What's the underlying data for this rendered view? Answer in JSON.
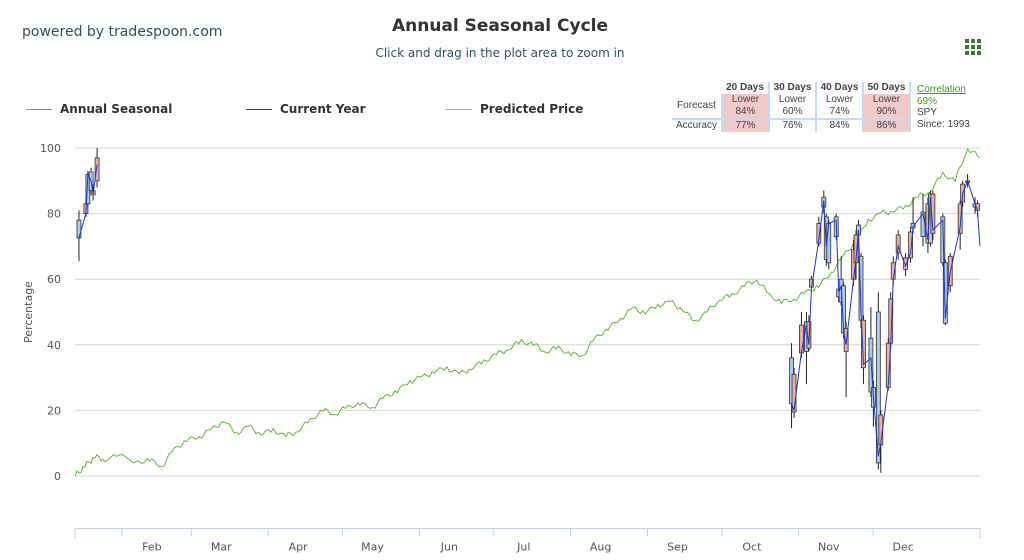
{
  "header": {
    "powered": "powered by tradespoon.com",
    "menu_icon": "grid-menu-icon"
  },
  "forecast": {
    "headers": [
      "20 Days",
      "30 Days",
      "40 Days",
      "50 Days"
    ],
    "forecast_label": "Forecast",
    "accuracy_label": "Accuracy",
    "forecast": [
      {
        "dir": "Lower",
        "pct": "84%",
        "hl": true
      },
      {
        "dir": "Lower",
        "pct": "60%",
        "hl": false
      },
      {
        "dir": "Lower",
        "pct": "74%",
        "hl": false
      },
      {
        "dir": "Lower",
        "pct": "90%",
        "hl": true
      }
    ],
    "accuracy": [
      {
        "pct": "77%",
        "hl": true
      },
      {
        "pct": "76%",
        "hl": false
      },
      {
        "pct": "84%",
        "hl": false
      },
      {
        "pct": "86%",
        "hl": true
      }
    ],
    "correlation_label": "Correlation",
    "correlation": "69%",
    "symbol": "SPY",
    "since": "Since: 1993"
  },
  "colors": {
    "seasonal": "#5cb83c",
    "current": "#2233cc",
    "predicted": "#f08a5d",
    "up": "#a9c9ee",
    "down": "#e8aea6"
  },
  "chart_data": {
    "type": "line",
    "title": "Annual Seasonal Cycle",
    "subtitle": "Click and drag in the plot area to zoom in",
    "ylabel": "Percentage",
    "xlabel": "",
    "ylim": [
      -16,
      100
    ],
    "xlim": [
      0,
      365
    ],
    "yticks": [
      0,
      20,
      40,
      60,
      80,
      100
    ],
    "xticks": [
      {
        "day": 31,
        "label": "Feb"
      },
      {
        "day": 59,
        "label": "Mar"
      },
      {
        "day": 90,
        "label": "Apr"
      },
      {
        "day": 120,
        "label": "May"
      },
      {
        "day": 151,
        "label": "Jun"
      },
      {
        "day": 181,
        "label": "Jul"
      },
      {
        "day": 212,
        "label": "Aug"
      },
      {
        "day": 243,
        "label": "Sep"
      },
      {
        "day": 273,
        "label": "Oct"
      },
      {
        "day": 304,
        "label": "Nov"
      },
      {
        "day": 334,
        "label": "Dec"
      }
    ],
    "legend": [
      "Annual Seasonal",
      "Current Year",
      "Predicted Price"
    ],
    "legend_position": "top-left",
    "seasonal": [
      [
        0,
        0
      ],
      [
        4,
        3
      ],
      [
        8,
        6
      ],
      [
        12,
        5
      ],
      [
        18,
        6
      ],
      [
        25,
        4
      ],
      [
        30,
        5
      ],
      [
        35,
        3
      ],
      [
        40,
        8
      ],
      [
        45,
        11
      ],
      [
        50,
        12
      ],
      [
        55,
        14
      ],
      [
        60,
        17
      ],
      [
        65,
        13
      ],
      [
        70,
        15
      ],
      [
        75,
        13
      ],
      [
        80,
        14
      ],
      [
        85,
        12
      ],
      [
        90,
        14
      ],
      [
        95,
        17
      ],
      [
        100,
        20
      ],
      [
        105,
        19
      ],
      [
        110,
        21
      ],
      [
        115,
        22
      ],
      [
        120,
        21
      ],
      [
        125,
        24
      ],
      [
        130,
        26
      ],
      [
        135,
        29
      ],
      [
        140,
        30
      ],
      [
        145,
        32
      ],
      [
        150,
        33
      ],
      [
        155,
        31
      ],
      [
        160,
        33
      ],
      [
        165,
        35
      ],
      [
        170,
        37
      ],
      [
        175,
        39
      ],
      [
        180,
        41
      ],
      [
        185,
        40
      ],
      [
        190,
        38
      ],
      [
        195,
        39
      ],
      [
        200,
        37
      ],
      [
        205,
        37
      ],
      [
        210,
        42
      ],
      [
        215,
        45
      ],
      [
        220,
        48
      ],
      [
        225,
        51
      ],
      [
        230,
        50
      ],
      [
        235,
        52
      ],
      [
        240,
        53
      ],
      [
        245,
        51
      ],
      [
        250,
        47
      ],
      [
        255,
        50
      ],
      [
        260,
        54
      ],
      [
        265,
        55
      ],
      [
        270,
        58
      ],
      [
        275,
        60
      ],
      [
        280,
        55
      ],
      [
        285,
        53
      ],
      [
        290,
        54
      ],
      [
        295,
        56
      ],
      [
        300,
        58
      ],
      [
        305,
        62
      ],
      [
        310,
        67
      ],
      [
        315,
        72
      ],
      [
        320,
        78
      ],
      [
        325,
        80
      ],
      [
        330,
        81
      ],
      [
        335,
        82
      ],
      [
        340,
        85
      ],
      [
        345,
        87
      ],
      [
        350,
        92
      ],
      [
        355,
        90
      ],
      [
        360,
        100
      ],
      [
        365,
        97
      ]
    ],
    "candles": [
      [
        1.6,
        72.6,
        81,
        65.5,
        78
      ],
      [
        4.4,
        83,
        84,
        79,
        80
      ],
      [
        5.2,
        83,
        93,
        82,
        92
      ],
      [
        6.5,
        87,
        94,
        86,
        92.7
      ],
      [
        7.3,
        87,
        89,
        84,
        85.7
      ],
      [
        8.9,
        97,
        100,
        88,
        90
      ],
      [
        289,
        22,
        40.5,
        14.6,
        36
      ],
      [
        290,
        31,
        33,
        17.7,
        19.5
      ],
      [
        293,
        46,
        50,
        36,
        37.5
      ],
      [
        295,
        38,
        50,
        28,
        47
      ],
      [
        296,
        47,
        49,
        38,
        39
      ],
      [
        297,
        60,
        61,
        57,
        57.6
      ],
      [
        300,
        77,
        79,
        70,
        71
      ],
      [
        302,
        82,
        87,
        80,
        85
      ],
      [
        303,
        66,
        80,
        64,
        79
      ],
      [
        304,
        65,
        78,
        63,
        77
      ],
      [
        307,
        73,
        80,
        72,
        79
      ],
      [
        308,
        54.6,
        58,
        53,
        57
      ],
      [
        309,
        53,
        67,
        52,
        60
      ],
      [
        310,
        43.6,
        59,
        42,
        58
      ],
      [
        311,
        45,
        47,
        24,
        38
      ],
      [
        314,
        69,
        72,
        58,
        60
      ],
      [
        315,
        73.5,
        75,
        60,
        65
      ],
      [
        316,
        73.5,
        78,
        72,
        76.5
      ],
      [
        317,
        47.5,
        68,
        45,
        67
      ],
      [
        318,
        47.5,
        49,
        28,
        33
      ],
      [
        321,
        25.6,
        51.5,
        24,
        42
      ],
      [
        322,
        21,
        29,
        15,
        27
      ],
      [
        324,
        4,
        56,
        2,
        50
      ],
      [
        325,
        18.6,
        20,
        1,
        9.5
      ],
      [
        328,
        40.5,
        42,
        26,
        27
      ],
      [
        329,
        54,
        56,
        39,
        40.5
      ],
      [
        330,
        65,
        67,
        58,
        60
      ],
      [
        332,
        73.5,
        75,
        66,
        68
      ],
      [
        335,
        66.5,
        68,
        61,
        63
      ],
      [
        337,
        74.4,
        76,
        65,
        66.5
      ],
      [
        338,
        75.6,
        85,
        74,
        77
      ],
      [
        342,
        73,
        86,
        70,
        80.5
      ],
      [
        344,
        83,
        85,
        68,
        71
      ],
      [
        345,
        71,
        87,
        70,
        86
      ],
      [
        346,
        86,
        87,
        72,
        74
      ],
      [
        350,
        65,
        80,
        64,
        79
      ],
      [
        351,
        46.6,
        66,
        46,
        65
      ],
      [
        353,
        67,
        68,
        56,
        58
      ],
      [
        357,
        83,
        84,
        69,
        74
      ],
      [
        358,
        89,
        90,
        82,
        83.5
      ],
      [
        360,
        89.5,
        92,
        88,
        90
      ],
      [
        363,
        82,
        85,
        80,
        83
      ],
      [
        364,
        83,
        84,
        79,
        81
      ]
    ],
    "current_line": [
      [
        1.6,
        72.6
      ],
      [
        4.4,
        80
      ],
      [
        5.2,
        92
      ],
      [
        6.5,
        90
      ],
      [
        7.3,
        86
      ],
      [
        8.9,
        95
      ],
      null,
      [
        289,
        22
      ],
      [
        290,
        20
      ],
      [
        293,
        38
      ],
      [
        295,
        46
      ],
      [
        296,
        40
      ],
      [
        297,
        57
      ],
      [
        300,
        72
      ],
      [
        302,
        84
      ],
      [
        303,
        70
      ],
      [
        304,
        77
      ],
      [
        307,
        78
      ],
      [
        308,
        56
      ],
      [
        309,
        58
      ],
      [
        310,
        44
      ],
      [
        311,
        40
      ],
      [
        314,
        60
      ],
      [
        315,
        66
      ],
      [
        316,
        75
      ],
      [
        317,
        50
      ],
      [
        318,
        34
      ],
      [
        321,
        36
      ],
      [
        322,
        24
      ],
      [
        324,
        6
      ],
      [
        325,
        10
      ],
      [
        328,
        28
      ],
      [
        329,
        40
      ],
      [
        330,
        60
      ],
      [
        332,
        70
      ],
      [
        335,
        64
      ],
      [
        337,
        68
      ],
      [
        338,
        76
      ],
      [
        342,
        80
      ],
      [
        344,
        72
      ],
      [
        345,
        85
      ],
      [
        346,
        75
      ],
      [
        350,
        78
      ],
      [
        351,
        48
      ],
      [
        353,
        62
      ],
      [
        357,
        76
      ],
      [
        358,
        86
      ],
      [
        360,
        90
      ],
      [
        363,
        83
      ],
      [
        364,
        81
      ],
      [
        365,
        70
      ]
    ]
  }
}
